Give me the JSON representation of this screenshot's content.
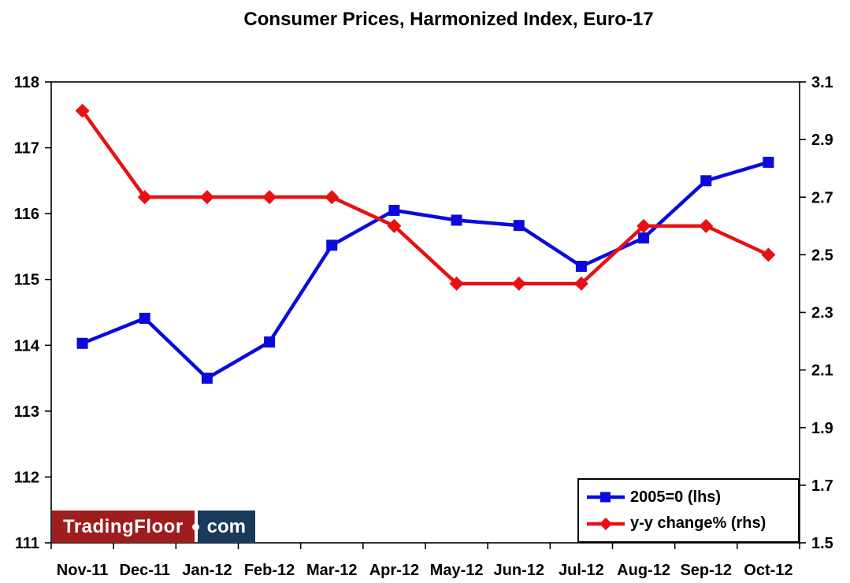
{
  "title": "Consumer Prices, Harmonized Index, Euro-17",
  "chart_data": {
    "type": "line",
    "title": "Consumer Prices, Harmonized Index, Euro-17",
    "categories": [
      "Nov-11",
      "Dec-11",
      "Jan-12",
      "Feb-12",
      "Mar-12",
      "Apr-12",
      "May-12",
      "Jun-12",
      "Jul-12",
      "Aug-12",
      "Sep-12",
      "Oct-12"
    ],
    "series": [
      {
        "name": "2005=0 (lhs)",
        "axis": "left",
        "color": "#0a0add",
        "marker": "square",
        "values": [
          114.03,
          114.41,
          113.5,
          114.05,
          115.52,
          116.05,
          115.9,
          115.82,
          115.2,
          115.63,
          116.5,
          116.78
        ]
      },
      {
        "name": "y-y change% (rhs)",
        "axis": "right",
        "color": "#e81010",
        "marker": "diamond",
        "values": [
          3.0,
          2.7,
          2.7,
          2.7,
          2.7,
          2.6,
          2.4,
          2.4,
          2.4,
          2.6,
          2.6,
          2.5
        ]
      }
    ],
    "left_axis": {
      "min": 111,
      "max": 118,
      "ticks": [
        111,
        112,
        113,
        114,
        115,
        116,
        117,
        118
      ],
      "tick_labels": [
        "111",
        "112",
        "113",
        "114",
        "115",
        "116",
        "117",
        "118"
      ]
    },
    "right_axis": {
      "min": 1.5,
      "max": 3.1,
      "ticks": [
        1.5,
        1.7,
        1.9,
        2.1,
        2.3,
        2.5,
        2.7,
        2.9,
        3.1
      ],
      "tick_labels": [
        "1.5",
        "1.7",
        "1.9",
        "2.1",
        "2.3",
        "2.5",
        "2.7",
        "2.9",
        "3.1"
      ]
    },
    "grid": false,
    "legend_position": "bottom-right"
  },
  "legend": {
    "items": [
      {
        "label": "2005=0 (lhs)"
      },
      {
        "label": "y-y change% (rhs)"
      }
    ]
  },
  "logo": {
    "part1": "TradingFloor",
    "separator": "dot",
    "part2": "com",
    "part1_bg": "#9f1d1d",
    "part2_bg": "#1a3a5c"
  },
  "colors": {
    "frame": "#000000",
    "background": "#ffffff"
  }
}
